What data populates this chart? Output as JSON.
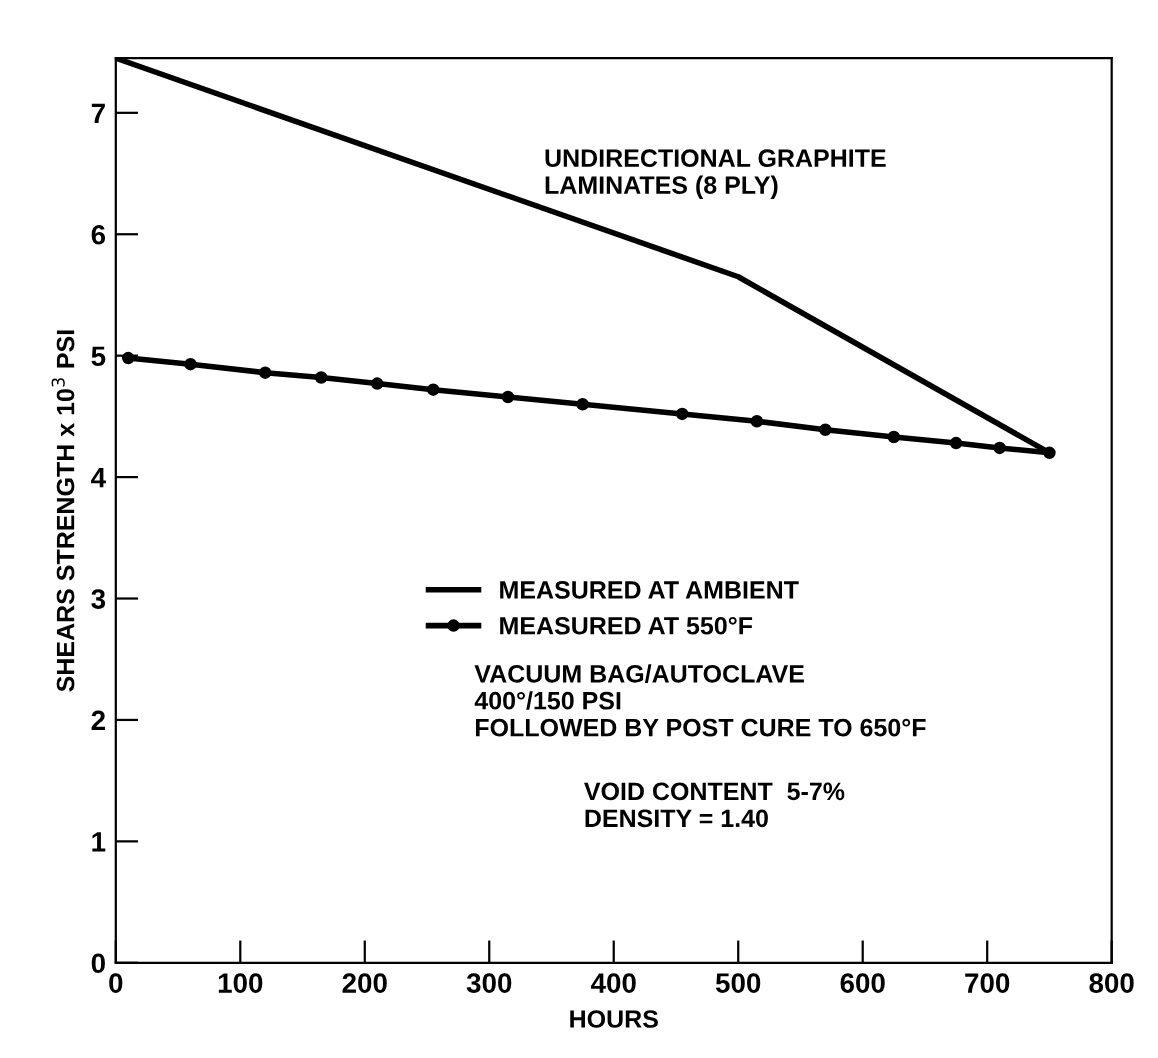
{
  "chart_data": {
    "type": "line",
    "xlabel": "HOURS",
    "ylabel": "SHEARS STRENGTH x 10$^{3}$ PSI",
    "xlim": [
      0,
      800
    ],
    "ylim": [
      0,
      7.45
    ],
    "xticks": [
      0,
      100,
      200,
      300,
      400,
      500,
      600,
      700,
      800
    ],
    "yticks": [
      0,
      1,
      2,
      3,
      4,
      5,
      6,
      7
    ],
    "grid": false,
    "legend": "center",
    "series": [
      {
        "name": "MEASURED AT AMBIENT",
        "color": "#000000",
        "marker": "none",
        "x": [
          0,
          500,
          750
        ],
        "values": [
          7.45,
          5.65,
          4.2
        ]
      },
      {
        "name": "MEASURED AT 550°F",
        "color": "#000000",
        "marker": "circle",
        "x": [
          10,
          60,
          120,
          165,
          210,
          255,
          315,
          375,
          455,
          515,
          570,
          625,
          675,
          710,
          750
        ],
        "values": [
          4.98,
          4.93,
          4.86,
          4.82,
          4.77,
          4.72,
          4.66,
          4.6,
          4.52,
          4.46,
          4.39,
          4.33,
          4.28,
          4.24,
          4.2
        ]
      }
    ],
    "annotations": [
      "UNDIRECTIONAL GRAPHITE\nLAMINATES (8 PLY)",
      "VACUUM BAG/AUTOCLAVE\n400°/150 PSI\nFOLLOWED BY POST CURE TO 650°F",
      "VOID CONTENT  5-7%\nDENSITY = 1.40"
    ]
  }
}
